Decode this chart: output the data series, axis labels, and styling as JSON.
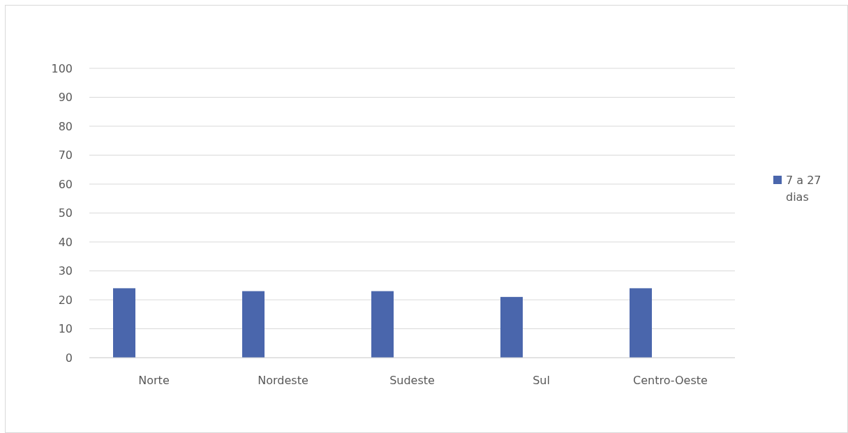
{
  "chart_data": {
    "type": "bar",
    "categories": [
      "Norte",
      "Nordeste",
      "Sudeste",
      "Sul",
      "Centro-Oeste"
    ],
    "series": [
      {
        "name": "7 a 27 dias",
        "color": "#4a66ac",
        "values": [
          24,
          23,
          23,
          21,
          24
        ]
      }
    ],
    "ylim": [
      0,
      100
    ],
    "yticks": [
      0,
      10,
      20,
      30,
      40,
      50,
      60,
      70,
      80,
      90,
      100
    ],
    "grid": "y",
    "legend": "right"
  }
}
